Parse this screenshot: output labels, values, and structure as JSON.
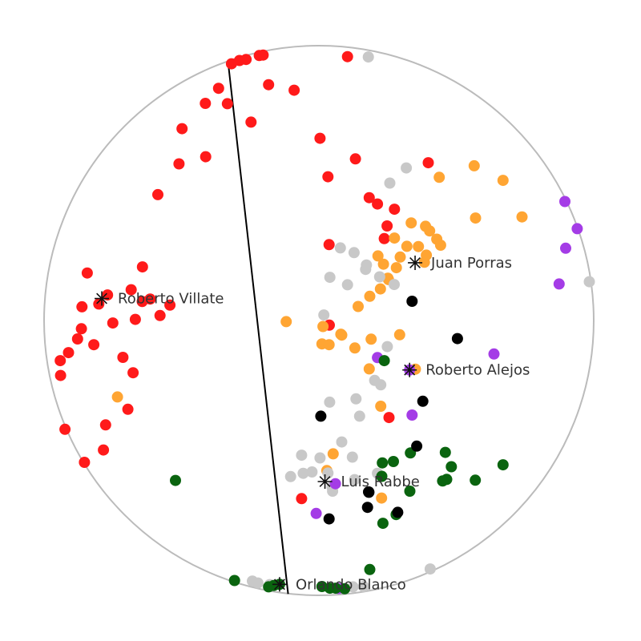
{
  "chart_data": {
    "type": "scatter",
    "title": "",
    "xlabel": "",
    "ylabel": "",
    "xlim": [
      -1,
      1
    ],
    "ylim": [
      -1,
      1
    ],
    "grid": false,
    "legend": "none",
    "boundary": "unit-circle",
    "divider_line": [
      [
        -0.331,
        0.945
      ],
      [
        -0.112,
        -0.995
      ]
    ],
    "colors": {
      "red": "#ff1a1a",
      "orange": "#ffa533",
      "gray": "#c8c8c8",
      "purple": "#a43ce6",
      "green": "#0a640f",
      "black": "#000000",
      "circle": "#bbbbbb",
      "divider": "#000000"
    },
    "series": [
      {
        "color_key": "red",
        "points": [
          [
            -0.318,
            0.934
          ],
          [
            -0.289,
            0.946
          ],
          [
            -0.265,
            0.95
          ],
          [
            -0.217,
            0.964
          ],
          [
            -0.203,
            0.966
          ],
          [
            0.104,
            0.96
          ],
          [
            -0.183,
            0.858
          ],
          [
            -0.09,
            0.838
          ],
          [
            -0.365,
            0.845
          ],
          [
            -0.413,
            0.79
          ],
          [
            -0.333,
            0.789
          ],
          [
            -0.247,
            0.722
          ],
          [
            -0.498,
            0.698
          ],
          [
            -0.412,
            0.596
          ],
          [
            -0.509,
            0.57
          ],
          [
            -0.586,
            0.458
          ],
          [
            0.004,
            0.663
          ],
          [
            0.133,
            0.588
          ],
          [
            0.398,
            0.574
          ],
          [
            0.033,
            0.523
          ],
          [
            0.183,
            0.447
          ],
          [
            0.213,
            0.424
          ],
          [
            0.275,
            0.405
          ],
          [
            0.248,
            0.344
          ],
          [
            0.238,
            0.298
          ],
          [
            0.037,
            0.276
          ],
          [
            -0.642,
            0.195
          ],
          [
            -0.843,
            0.173
          ],
          [
            -0.769,
            0.093
          ],
          [
            -0.801,
            0.06
          ],
          [
            -0.862,
            0.05
          ],
          [
            -0.683,
            0.112
          ],
          [
            -0.614,
            0.078
          ],
          [
            -0.643,
            0.069
          ],
          [
            -0.542,
            0.056
          ],
          [
            -0.578,
            0.018
          ],
          [
            -0.668,
            0.004
          ],
          [
            -0.75,
            -0.009
          ],
          [
            -0.864,
            -0.03
          ],
          [
            -0.878,
            -0.067
          ],
          [
            -0.819,
            -0.088
          ],
          [
            -0.911,
            -0.117
          ],
          [
            -0.941,
            -0.146
          ],
          [
            -0.94,
            -0.2
          ],
          [
            -0.713,
            -0.134
          ],
          [
            -0.676,
            -0.19
          ],
          [
            -0.695,
            -0.323
          ],
          [
            -0.776,
            -0.38
          ],
          [
            -0.924,
            -0.396
          ],
          [
            -0.784,
            -0.471
          ],
          [
            -0.853,
            -0.516
          ],
          [
            0.038,
            -0.017
          ],
          [
            0.255,
            -0.353
          ],
          [
            -0.063,
            -0.648
          ]
        ]
      },
      {
        "color_key": "orange",
        "points": [
          [
            0.565,
            0.563
          ],
          [
            0.438,
            0.521
          ],
          [
            0.67,
            0.51
          ],
          [
            0.739,
            0.377
          ],
          [
            0.57,
            0.373
          ],
          [
            0.336,
            0.355
          ],
          [
            0.388,
            0.343
          ],
          [
            0.403,
            0.326
          ],
          [
            0.429,
            0.296
          ],
          [
            0.275,
            0.3
          ],
          [
            0.215,
            0.235
          ],
          [
            0.235,
            0.205
          ],
          [
            0.253,
            0.149
          ],
          [
            0.384,
            0.212
          ],
          [
            0.391,
            0.238
          ],
          [
            0.443,
            0.274
          ],
          [
            0.362,
            0.269
          ],
          [
            0.32,
            0.27
          ],
          [
            0.296,
            0.231
          ],
          [
            0.282,
            0.192
          ],
          [
            0.251,
            0.154
          ],
          [
            0.224,
            0.115
          ],
          [
            0.185,
            0.088
          ],
          [
            0.143,
            0.051
          ],
          [
            0.08,
            -0.05
          ],
          [
            0.083,
            -0.053
          ],
          [
            -0.119,
            -0.004
          ],
          [
            0.015,
            -0.022
          ],
          [
            0.011,
            -0.085
          ],
          [
            0.037,
            -0.088
          ],
          [
            0.294,
            -0.052
          ],
          [
            0.19,
            -0.068
          ],
          [
            0.131,
            -0.1
          ],
          [
            0.183,
            -0.176
          ],
          [
            0.351,
            -0.177
          ],
          [
            0.225,
            -0.312
          ],
          [
            -0.733,
            -0.278
          ],
          [
            0.052,
            -0.485
          ],
          [
            0.029,
            -0.546
          ],
          [
            0.228,
            -0.646
          ]
        ]
      },
      {
        "color_key": "gray",
        "points": [
          [
            0.18,
            0.959
          ],
          [
            0.318,
            0.555
          ],
          [
            0.258,
            0.5
          ],
          [
            0.078,
            0.264
          ],
          [
            0.128,
            0.247
          ],
          [
            0.173,
            0.202
          ],
          [
            0.17,
            0.186
          ],
          [
            0.221,
            0.159
          ],
          [
            0.274,
            0.131
          ],
          [
            0.104,
            0.13
          ],
          [
            0.04,
            0.157
          ],
          [
            0.018,
            0.02
          ],
          [
            0.249,
            -0.095
          ],
          [
            0.225,
            -0.234
          ],
          [
            0.135,
            -0.285
          ],
          [
            0.203,
            -0.218
          ],
          [
            0.039,
            -0.297
          ],
          [
            0.148,
            -0.348
          ],
          [
            0.083,
            -0.442
          ],
          [
            0.122,
            -0.497
          ],
          [
            0.004,
            -0.5
          ],
          [
            -0.025,
            -0.551
          ],
          [
            -0.063,
            -0.49
          ],
          [
            0.13,
            -0.579
          ],
          [
            0.033,
            -0.555
          ],
          [
            0.048,
            -0.606
          ],
          [
            -0.103,
            -0.568
          ],
          [
            0.213,
            -0.556
          ],
          [
            0.05,
            -0.621
          ],
          [
            -0.057,
            -0.556
          ],
          [
            -0.242,
            -0.948
          ],
          [
            -0.222,
            -0.955
          ],
          [
            -0.179,
            -0.961
          ],
          [
            0.124,
            -0.969
          ],
          [
            0.163,
            -0.968
          ],
          [
            0.405,
            -0.904
          ],
          [
            0.984,
            0.141
          ]
        ]
      },
      {
        "color_key": "purple",
        "points": [
          [
            0.895,
            0.433
          ],
          [
            0.94,
            0.334
          ],
          [
            0.898,
            0.263
          ],
          [
            0.874,
            0.133
          ],
          [
            0.637,
            -0.122
          ],
          [
            0.213,
            -0.135
          ],
          [
            0.339,
            -0.344
          ],
          [
            0.06,
            -0.594
          ],
          [
            -0.01,
            -0.702
          ],
          [
            0.071,
            -0.975
          ]
        ]
      },
      {
        "color_key": "green",
        "points": [
          [
            -0.522,
            -0.582
          ],
          [
            0.238,
            -0.146
          ],
          [
            0.271,
            -0.513
          ],
          [
            0.231,
            -0.518
          ],
          [
            0.46,
            -0.48
          ],
          [
            0.482,
            -0.532
          ],
          [
            0.465,
            -0.578
          ],
          [
            0.45,
            -0.584
          ],
          [
            0.569,
            -0.581
          ],
          [
            0.67,
            -0.525
          ],
          [
            0.333,
            -0.482
          ],
          [
            0.229,
            -0.567
          ],
          [
            0.331,
            -0.621
          ],
          [
            0.281,
            -0.706
          ],
          [
            0.233,
            -0.738
          ],
          [
            0.185,
            -0.906
          ],
          [
            -0.307,
            -0.946
          ],
          [
            0.011,
            -0.968
          ],
          [
            0.04,
            -0.974
          ],
          [
            0.061,
            -0.974
          ],
          [
            0.094,
            -0.976
          ],
          [
            -0.164,
            -0.964
          ],
          [
            -0.183,
            -0.969
          ]
        ]
      },
      {
        "color_key": "black",
        "points": [
          [
            0.339,
            0.07
          ],
          [
            0.504,
            -0.066
          ],
          [
            0.378,
            -0.294
          ],
          [
            0.007,
            -0.348
          ],
          [
            0.356,
            -0.457
          ],
          [
            0.181,
            -0.624
          ],
          [
            0.181,
            -0.624
          ],
          [
            0.182,
            -0.625
          ],
          [
            0.177,
            -0.68
          ],
          [
            0.287,
            -0.698
          ],
          [
            0.037,
            -0.722
          ]
        ]
      }
    ],
    "stars": [
      {
        "label": "Juan Porras",
        "x": 0.35,
        "y": 0.21,
        "color_key": "black"
      },
      {
        "label": "Roberto Villate",
        "x": -0.79,
        "y": 0.08,
        "color_key": "black"
      },
      {
        "label": "Roberto Alejos",
        "x": 0.33,
        "y": -0.18,
        "color_key": "purple"
      },
      {
        "label": "Luis Rabbe",
        "x": 0.022,
        "y": -0.586,
        "color_key": "black"
      },
      {
        "label": "Orlando Blanco",
        "x": -0.143,
        "y": -0.96,
        "color_key": "green"
      }
    ]
  }
}
